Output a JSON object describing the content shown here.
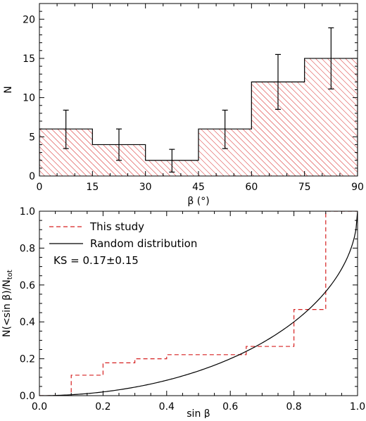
{
  "chart_data": [
    {
      "type": "bar",
      "subtype": "histogram",
      "xlabel": "β (°)",
      "ylabel": "N",
      "xlim": [
        0,
        90
      ],
      "ylim": [
        0,
        22
      ],
      "xticks": [
        "0",
        "15",
        "30",
        "45",
        "60",
        "75",
        "90"
      ],
      "yticks": [
        "0",
        "5",
        "10",
        "15",
        "20"
      ],
      "bin_edges": [
        0,
        15,
        30,
        45,
        60,
        75,
        90
      ],
      "values": [
        6,
        4,
        2,
        6,
        12,
        15
      ],
      "error_low": [
        3.5,
        2,
        0.5,
        3.5,
        8.5,
        11.1
      ],
      "error_high": [
        8.4,
        6,
        3.4,
        8.4,
        15.5,
        18.9
      ],
      "fill": "red diagonal hatch",
      "hatch_color": "#d62020",
      "line_color": "#000000"
    },
    {
      "type": "line",
      "subtype": "cumulative distribution",
      "xlabel": "sin β",
      "ylabel": "N(<sin β)/N",
      "ylabel_sub": "tot",
      "xlim": [
        0,
        1
      ],
      "ylim": [
        0,
        1
      ],
      "xticks": [
        "0.0",
        "0.2",
        "0.4",
        "0.6",
        "0.8",
        "1.0"
      ],
      "yticks": [
        "0.0",
        "0.2",
        "0.4",
        "0.6",
        "0.8",
        "1.0"
      ],
      "series": [
        {
          "name": "This study",
          "style": "dashed step",
          "color": "#d62020",
          "x": [
            0.0,
            0.1,
            0.1,
            0.2,
            0.2,
            0.3,
            0.3,
            0.4,
            0.4,
            0.65,
            0.65,
            0.8,
            0.8,
            0.9,
            0.9,
            1.0
          ],
          "y": [
            0.0,
            0.0,
            0.111,
            0.111,
            0.178,
            0.178,
            0.2,
            0.2,
            0.222,
            0.222,
            0.267,
            0.267,
            0.467,
            0.467,
            1.0,
            1.0
          ]
        },
        {
          "name": "Random distribution",
          "style": "solid",
          "color": "#000000",
          "function": "1 - sqrt(1 - x^2)"
        }
      ],
      "annotation": "KS = 0.17±0.15",
      "legend_position": "top-left"
    }
  ]
}
